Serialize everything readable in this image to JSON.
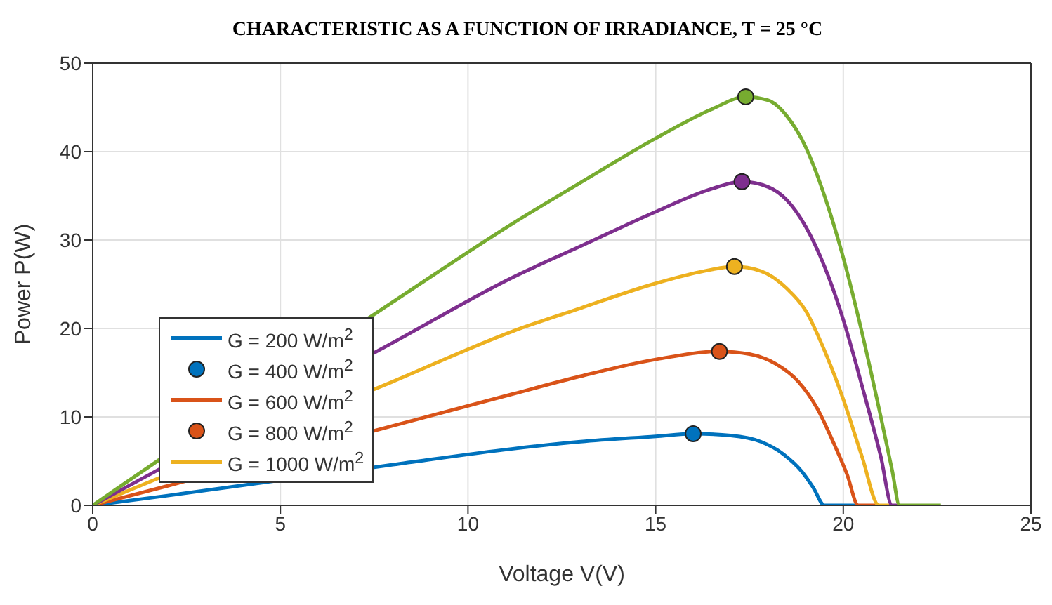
{
  "chart_data": {
    "type": "line",
    "title": "CHARACTERISTIC AS A FUNCTION OF IRRADIANCE, T = 25 °C",
    "xlabel": "Voltage V(V)",
    "ylabel": "Power P(W)",
    "xlim": [
      0,
      25
    ],
    "xticks": [
      0,
      5,
      10,
      15,
      20,
      25
    ],
    "ylim": [
      0,
      50
    ],
    "yticks": [
      0,
      10,
      20,
      30,
      40,
      50
    ],
    "grid": true,
    "legend": "left",
    "line_style": "solid",
    "series": [
      {
        "name": "G = 200 W/m$^{2}$",
        "color": "#0072bd",
        "x": [
          0,
          2,
          8,
          11.2,
          13,
          15,
          16,
          17,
          17.8,
          18.4,
          18.9,
          19.2,
          19.5,
          20.4
        ],
        "values": [
          0,
          1.1,
          4.6,
          6.4,
          7.2,
          7.8,
          8.1,
          7.9,
          7.2,
          5.8,
          3.8,
          2,
          0,
          0
        ]
      },
      {
        "name": "G = 400 W/m$^{2}$",
        "type": "scatter",
        "marker": "circle",
        "color": "#0072bd",
        "x": [
          16
        ],
        "values": [
          8.1
        ]
      },
      {
        "name": "G = 600 W/m$^{2}$",
        "color": "#d95319",
        "x": [
          0,
          2,
          8,
          11.2,
          13,
          15,
          16.7,
          17.5,
          18.2,
          18.8,
          19.3,
          19.8,
          20.1,
          20.4,
          20.95
        ],
        "values": [
          0,
          2.2,
          9,
          12.6,
          14.6,
          16.5,
          17.4,
          17.1,
          16,
          14,
          11,
          6.5,
          3.5,
          0,
          0
        ]
      },
      {
        "name": "G = 800 W/m$^{2}$",
        "type": "scatter",
        "marker": "circle",
        "color": "#d95319",
        "x": [
          16.7
        ],
        "values": [
          17.4
        ]
      },
      {
        "name": "G = 1000 W/m$^{2}$",
        "color": "#edb120",
        "x": [
          0,
          8,
          11.2,
          13,
          15,
          16.3,
          17.1,
          17.8,
          18.5,
          19,
          19.5,
          20,
          20.5,
          20.95,
          21.3
        ],
        "values": [
          0,
          14,
          19.7,
          22.3,
          25.1,
          26.5,
          27,
          26.5,
          24.5,
          22,
          17.5,
          12,
          5.5,
          0,
          0
        ]
      },
      {
        "type": "scatter",
        "marker": "circle",
        "color": "#edb120",
        "x": [
          17.1
        ],
        "values": [
          27
        ]
      },
      {
        "color": "#7e2f8e",
        "x": [
          0,
          8,
          11.2,
          13,
          15,
          16.5,
          17.3,
          18,
          18.5,
          19,
          19.5,
          20,
          20.5,
          21,
          21.3,
          21.5
        ],
        "values": [
          0,
          18.4,
          25.8,
          29.3,
          33.2,
          35.8,
          36.6,
          36,
          34.5,
          31.5,
          27,
          21,
          13.5,
          5.5,
          0,
          0
        ]
      },
      {
        "type": "scatter",
        "marker": "circle",
        "color": "#7e2f8e",
        "x": [
          17.3
        ],
        "values": [
          36.6
        ]
      },
      {
        "color": "#77ac30",
        "x": [
          0,
          8,
          11.2,
          13,
          15,
          16.5,
          17.4,
          18,
          18.5,
          19,
          19.5,
          20,
          20.5,
          21,
          21.3,
          21.5,
          22.6
        ],
        "values": [
          0,
          23,
          31.9,
          36.5,
          41.5,
          44.8,
          46.2,
          45.8,
          44,
          40.5,
          35,
          28,
          19.5,
          10,
          4,
          0,
          0
        ]
      },
      {
        "type": "scatter",
        "marker": "circle",
        "color": "#77ac30",
        "x": [
          17.4
        ],
        "values": [
          46.2
        ]
      }
    ]
  }
}
